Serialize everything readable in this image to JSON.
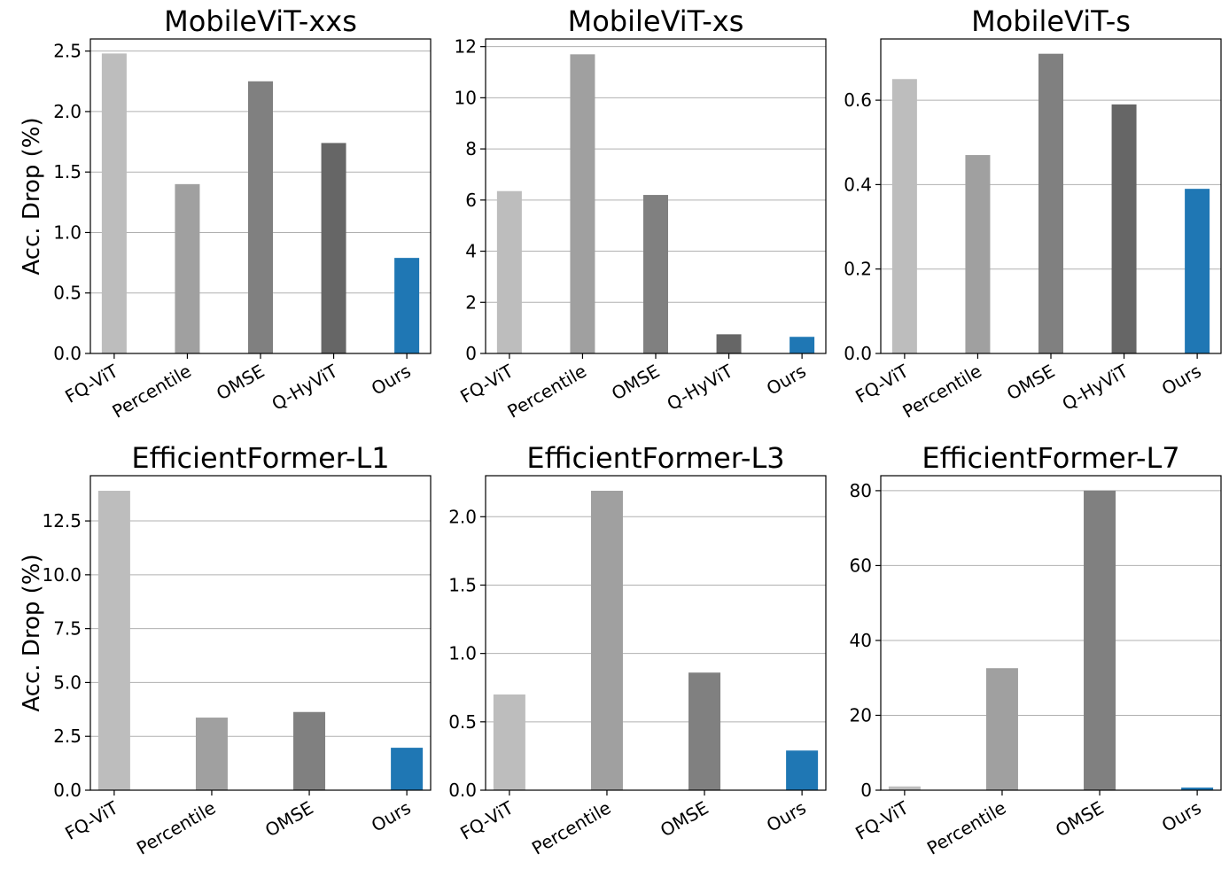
{
  "chart_data": [
    {
      "type": "bar",
      "title": "MobileViT-xxs",
      "ylabel": "Acc. Drop (%)",
      "categories": [
        "FQ-ViT",
        "Percentile",
        "OMSE",
        "Q-HyViT",
        "Ours"
      ],
      "values": [
        2.48,
        1.4,
        2.25,
        1.74,
        0.79
      ],
      "colors": [
        "#bdbdbd",
        "#a0a0a0",
        "#808080",
        "#666666",
        "#1f77b4"
      ],
      "ylim": [
        0,
        2.6
      ],
      "yticks": [
        0,
        0.5,
        1,
        1.5,
        2,
        2.5
      ],
      "ytick_labels": [
        "0.0",
        "0.5",
        "1.0",
        "1.5",
        "2.0",
        "2.5"
      ],
      "grid": true
    },
    {
      "type": "bar",
      "title": "MobileViT-xs",
      "ylabel": "",
      "categories": [
        "FQ-ViT",
        "Percentile",
        "OMSE",
        "Q-HyViT",
        "Ours"
      ],
      "values": [
        6.35,
        11.7,
        6.2,
        0.75,
        0.65
      ],
      "colors": [
        "#bdbdbd",
        "#a0a0a0",
        "#808080",
        "#666666",
        "#1f77b4"
      ],
      "ylim": [
        0,
        12.3
      ],
      "yticks": [
        0,
        2,
        4,
        6,
        8,
        10,
        12
      ],
      "ytick_labels": [
        "0",
        "2",
        "4",
        "6",
        "8",
        "10",
        "12"
      ],
      "grid": true
    },
    {
      "type": "bar",
      "title": "MobileViT-s",
      "ylabel": "",
      "categories": [
        "FQ-ViT",
        "Percentile",
        "OMSE",
        "Q-HyViT",
        "Ours"
      ],
      "values": [
        0.65,
        0.47,
        0.71,
        0.59,
        0.39
      ],
      "colors": [
        "#bdbdbd",
        "#a0a0a0",
        "#808080",
        "#666666",
        "#1f77b4"
      ],
      "ylim": [
        0,
        0.745
      ],
      "yticks": [
        0,
        0.2,
        0.4,
        0.6
      ],
      "ytick_labels": [
        "0.0",
        "0.2",
        "0.4",
        "0.6"
      ],
      "grid": true
    },
    {
      "type": "bar",
      "title": "EfficientFormer-L1",
      "ylabel": "Acc. Drop (%)",
      "categories": [
        "FQ-ViT",
        "Percentile",
        "OMSE",
        "Ours"
      ],
      "values": [
        13.9,
        3.37,
        3.63,
        1.97
      ],
      "colors": [
        "#bdbdbd",
        "#a0a0a0",
        "#808080",
        "#1f77b4"
      ],
      "ylim": [
        0,
        14.6
      ],
      "yticks": [
        0,
        2.5,
        5,
        7.5,
        10,
        12.5
      ],
      "ytick_labels": [
        "0.0",
        "2.5",
        "5.0",
        "7.5",
        "10.0",
        "12.5"
      ],
      "grid": true
    },
    {
      "type": "bar",
      "title": "EfficientFormer-L3",
      "ylabel": "",
      "categories": [
        "FQ-ViT",
        "Percentile",
        "OMSE",
        "Ours"
      ],
      "values": [
        0.7,
        2.19,
        0.86,
        0.29
      ],
      "colors": [
        "#bdbdbd",
        "#a0a0a0",
        "#808080",
        "#1f77b4"
      ],
      "ylim": [
        0,
        2.3
      ],
      "yticks": [
        0,
        0.5,
        1,
        1.5,
        2
      ],
      "ytick_labels": [
        "0.0",
        "0.5",
        "1.0",
        "1.5",
        "2.0"
      ],
      "grid": true
    },
    {
      "type": "bar",
      "title": "EfficientFormer-L7",
      "ylabel": "",
      "categories": [
        "FQ-ViT",
        "Percentile",
        "OMSE",
        "Ours"
      ],
      "values": [
        1.0,
        32.6,
        80.0,
        0.7
      ],
      "colors": [
        "#bdbdbd",
        "#a0a0a0",
        "#808080",
        "#1f77b4"
      ],
      "ylim": [
        0,
        84
      ],
      "yticks": [
        0,
        20,
        40,
        60,
        80
      ],
      "ytick_labels": [
        "0",
        "20",
        "40",
        "60",
        "80"
      ],
      "grid": true
    }
  ]
}
